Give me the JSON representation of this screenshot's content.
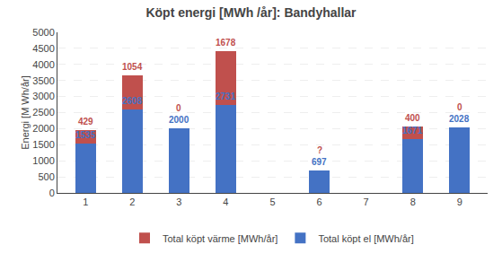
{
  "chart_data": {
    "type": "bar",
    "title": "Köpt energi [MWh /år]: Bandyhallar",
    "ylabel": "Energi [M Wh/år]",
    "categories": [
      1,
      2,
      3,
      4,
      5,
      6,
      7,
      8,
      9
    ],
    "series": [
      {
        "name": "Total köpt el [MWh/år]",
        "color": "#4472C4",
        "values": [
          1535,
          2608,
          2000,
          2731,
          0,
          697,
          0,
          1671,
          2028
        ],
        "value_labels": [
          "1535",
          "2608",
          "2000",
          "2731",
          null,
          "697",
          null,
          "1671",
          "2028"
        ]
      },
      {
        "name": "Total köpt värme [MWh/år]",
        "color": "#C0504D",
        "values": [
          429,
          1054,
          0,
          1678,
          0,
          0,
          0,
          400,
          0
        ],
        "value_labels": [
          "429",
          "1054",
          "0",
          "1678",
          null,
          "?",
          null,
          "400",
          "0"
        ]
      }
    ],
    "stacked": true,
    "data_labels": true,
    "ylim": [
      0,
      5000
    ],
    "yticks": [
      0,
      500,
      1000,
      1500,
      2000,
      2500,
      3000,
      3500,
      4000,
      4500,
      5000
    ],
    "grid": true,
    "legend": "bottom"
  }
}
